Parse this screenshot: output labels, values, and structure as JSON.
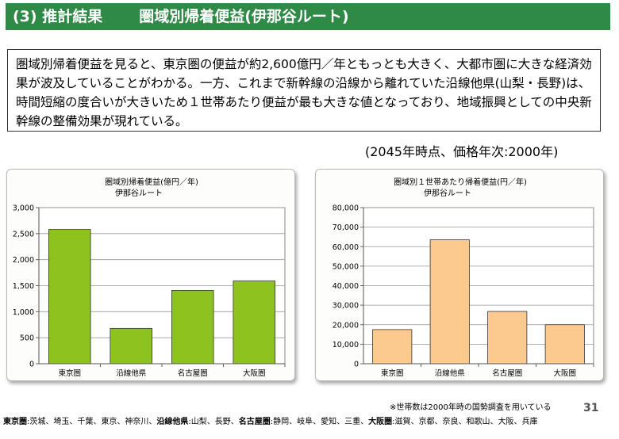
{
  "header": {
    "section": "(3) 推計結果",
    "title": "圏域別帰着便益(伊那谷ルート)"
  },
  "summary": "圏域別帰着便益を見ると、東京圏の便益が約2,600億円／年ともっとも大きく、大都市圏に大きな経済効果が波及していることがわかる。一方、これまで新幹線の沿線から離れていた沿線他県(山梨・長野)は、時間短縮の度合いが大きいため１世帯あたり便益が最も大きな値となっており、地域振興としての中央新幹線の整備効果が現れている。",
  "note_year": "(2045年時点、価格年次:2000年)",
  "footnote": "※世帯数は2000年時の国勢調査を用いている",
  "page_number": "31",
  "legend_line": [
    {
      "term": "東京圏",
      "desc": ":茨城、埼玉、千葉、東京、神奈川、"
    },
    {
      "term": "沿線他県",
      "desc": ":山梨、長野、"
    },
    {
      "term": "名古屋圏",
      "desc": ":静岡、岐阜、愛知、三重、"
    },
    {
      "term": "大阪圏",
      "desc": ":滋賀、京都、奈良、和歌山、大阪、兵庫"
    }
  ],
  "chart_data": [
    {
      "type": "bar",
      "title": "圏域別帰着便益(億円／年)",
      "subtitle": "伊那谷ルート",
      "categories": [
        "東京圏",
        "沿線他県",
        "名古屋圏",
        "大阪圏"
      ],
      "values": [
        2580,
        680,
        1410,
        1590
      ],
      "ylim": [
        0,
        3000
      ],
      "yticks": [
        0,
        500,
        1000,
        1500,
        2000,
        2500,
        3000
      ],
      "ytick_labels": [
        "0",
        "500",
        "1,000",
        "1,500",
        "2,000",
        "2,500",
        "3,000"
      ],
      "grid": true,
      "color": "#8dc21f"
    },
    {
      "type": "bar",
      "title": "圏域別１世帯あたり帰着便益(円／年)",
      "subtitle": "伊那谷ルート",
      "categories": [
        "東京圏",
        "沿線他県",
        "名古屋圏",
        "大阪圏"
      ],
      "values": [
        17500,
        63500,
        26800,
        20000
      ],
      "ylim": [
        0,
        80000
      ],
      "yticks": [
        0,
        10000,
        20000,
        30000,
        40000,
        50000,
        60000,
        70000,
        80000
      ],
      "ytick_labels": [
        "0",
        "10,000",
        "20,000",
        "30,000",
        "40,000",
        "50,000",
        "60,000",
        "70,000",
        "80,000"
      ],
      "grid": true,
      "color": "#fcc98f"
    }
  ]
}
